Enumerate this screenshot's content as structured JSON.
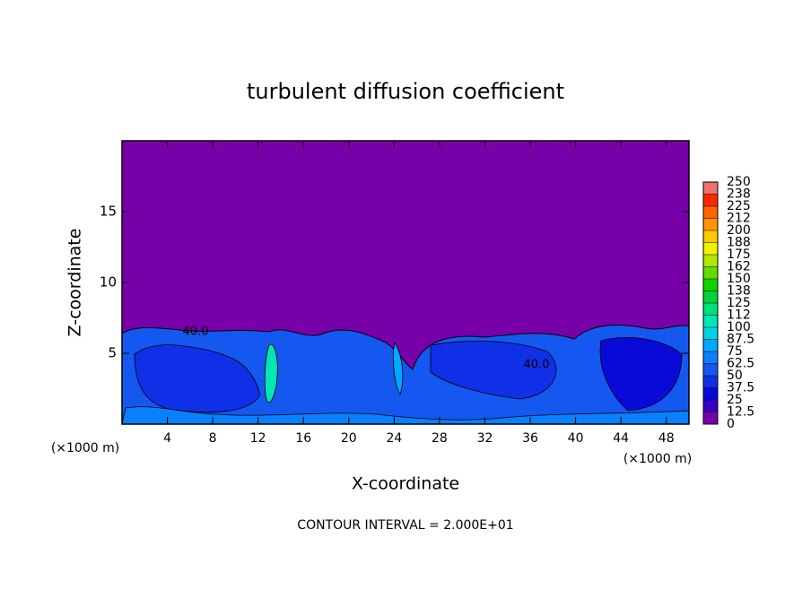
{
  "chart_data": {
    "type": "contour",
    "title": "turbulent diffusion coefficient",
    "x_label": "X-coordinate",
    "y_label": "Z-coordinate",
    "x_unit_labels": [
      "(×1000 m)",
      "(×1000 m)"
    ],
    "footer": "CONTOUR INTERVAL = 2.000E+01",
    "annotations": [
      "40.0",
      "40.0"
    ],
    "xlim": [
      0,
      50
    ],
    "xticks": [
      4,
      8,
      12,
      16,
      20,
      24,
      28,
      32,
      36,
      40,
      44,
      48
    ],
    "ylim": [
      0,
      20
    ],
    "yticks": [
      5,
      10,
      15
    ],
    "colorbar": {
      "lim": [
        0,
        250
      ],
      "ticks": [
        0,
        12.5,
        25,
        37.5,
        50,
        62.5,
        75,
        87.5,
        100,
        {
          "value": 112.5,
          "label": "112"
        },
        125,
        {
          "value": 137.5,
          "label": "138"
        },
        150,
        {
          "value": 162.5,
          "label": "162"
        },
        175,
        {
          "value": 187.5,
          "label": "188"
        },
        200,
        {
          "value": 212.5,
          "label": "212"
        },
        225,
        {
          "value": 237.5,
          "label": "238"
        },
        250
      ],
      "colors": [
        "#7800a8",
        "#3a00c4",
        "#0a0ad8",
        "#1030e8",
        "#1458f0",
        "#0a80ff",
        "#00a8ff",
        "#00d2e6",
        "#00e6b4",
        "#00e078",
        "#00d23c",
        "#14d200",
        "#64dc00",
        "#b4e600",
        "#f0f000",
        "#ffc800",
        "#ff9600",
        "#ff6400",
        "#ff2800",
        "#f07070"
      ]
    }
  }
}
